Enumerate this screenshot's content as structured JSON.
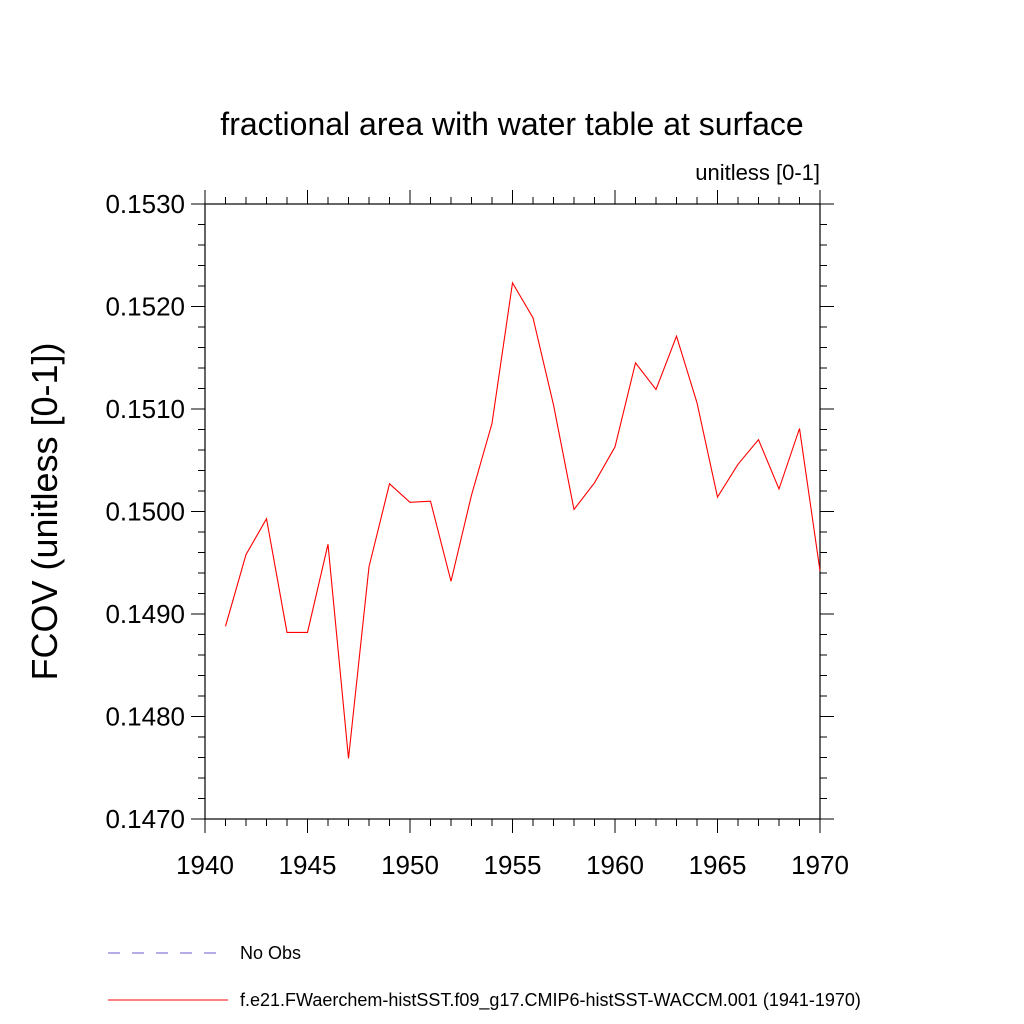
{
  "chart_data": {
    "type": "line",
    "title": "fractional area with water table at surface",
    "subtitle": "unitless [0-1]",
    "xlabel": "",
    "ylabel": "FCOV  (unitless [0-1])",
    "xlim": [
      1940,
      1970
    ],
    "ylim": [
      0.147,
      0.153
    ],
    "x_ticks": [
      1940,
      1945,
      1950,
      1955,
      1960,
      1965,
      1970
    ],
    "y_ticks": [
      "0.1470",
      "0.1480",
      "0.1490",
      "0.1500",
      "0.1510",
      "0.1520",
      "0.1530"
    ],
    "grid": false,
    "legend_position": "bottom",
    "series": [
      {
        "name": "No Obs",
        "color": "#6a5acd",
        "dash": "dashed",
        "x": [],
        "values": []
      },
      {
        "name": "f.e21.FWaerchem-histSST.f09_g17.CMIP6-histSST-WACCM.001 (1941-1970)",
        "color": "#ff0000",
        "dash": "solid",
        "x": [
          1941,
          1942,
          1943,
          1944,
          1945,
          1946,
          1947,
          1948,
          1949,
          1950,
          1951,
          1952,
          1953,
          1954,
          1955,
          1956,
          1957,
          1958,
          1959,
          1960,
          1961,
          1962,
          1963,
          1964,
          1965,
          1966,
          1967,
          1968,
          1969,
          1970
        ],
        "values": [
          0.14888,
          0.14958,
          0.14993,
          0.14882,
          0.14882,
          0.14968,
          0.14759,
          0.14946,
          0.15027,
          0.15009,
          0.1501,
          0.14932,
          0.15016,
          0.15086,
          0.15223,
          0.15189,
          0.15104,
          0.15002,
          0.15028,
          0.15063,
          0.15145,
          0.15119,
          0.15171,
          0.15106,
          0.15014,
          0.15046,
          0.1507,
          0.15022,
          0.15081,
          0.14942
        ]
      }
    ]
  }
}
